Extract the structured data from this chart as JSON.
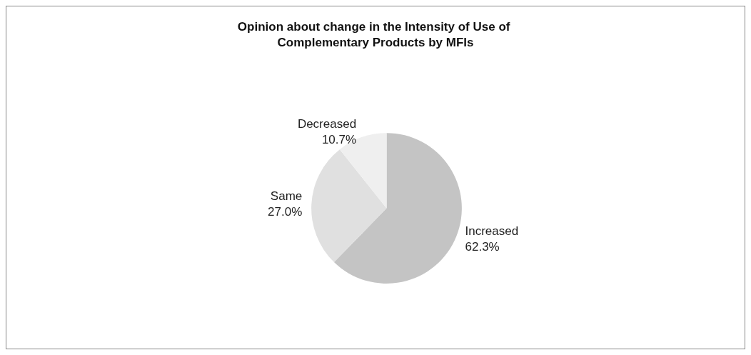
{
  "chart_data": {
    "type": "pie",
    "title": "Opinion about change in the Intensity of Use of Complementary Products by MFIs",
    "categories": [
      "Increased",
      "Same",
      "Decreased"
    ],
    "values": [
      62.3,
      27.0,
      10.7
    ],
    "value_labels": [
      "62.3%",
      "27.0%",
      "10.7%"
    ],
    "colors": [
      "#c4c4c4",
      "#e0e0e0",
      "#efefef"
    ],
    "legend": false
  }
}
